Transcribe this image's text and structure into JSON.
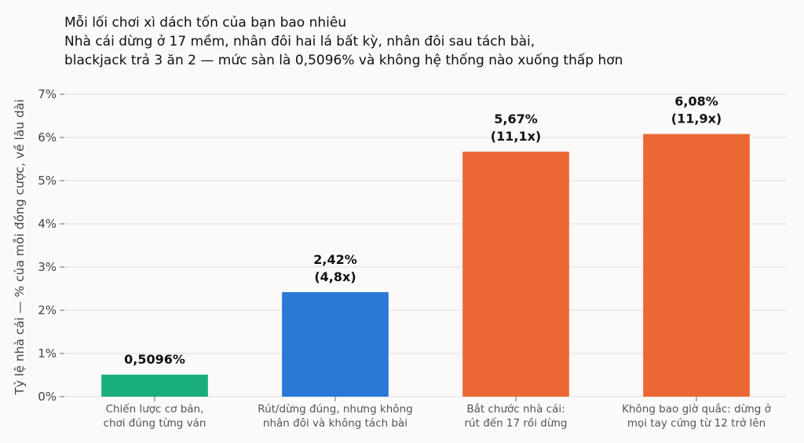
{
  "chart_data": {
    "type": "bar",
    "title_lines": [
      "Mỗi lối chơi xì dách tốn của bạn bao nhiêu",
      "Nhà cái dừng ở 17 mềm, nhân đôi hai lá bất kỳ, nhân đôi sau tách bài,",
      "blackjack trả 3 ăn 2 — mức sàn là 0,5096% và không hệ thống nào xuống thấp hơn"
    ],
    "ylabel": "Tỷ lệ nhà cái — % của mỗi đồng cược, về lâu dài",
    "xlabel": "",
    "ylim": [
      0,
      7
    ],
    "yticks": [
      0,
      1,
      2,
      3,
      4,
      5,
      6,
      7
    ],
    "ytick_labels": [
      "0%",
      "1%",
      "2%",
      "3%",
      "4%",
      "5%",
      "6%",
      "7%"
    ],
    "grid": true,
    "categories": [
      [
        "Chiến lược cơ bản,",
        "chơi đúng từng ván"
      ],
      [
        "Rút/dừng đúng, nhưng không",
        "nhân đôi và không tách bài"
      ],
      [
        "Bắt chước nhà cái:",
        "rút đến 17 rồi dừng"
      ],
      [
        "Không bao giờ quắc: dừng ở",
        "mọi tay cứng từ 12 trở lên"
      ]
    ],
    "values": [
      0.5096,
      2.42,
      5.67,
      6.08
    ],
    "data_labels": [
      [
        "0,5096%"
      ],
      [
        "2,42%",
        "(4,8x)"
      ],
      [
        "5,67%",
        "(11,1x)"
      ],
      [
        "6,08%",
        "(11,9x)"
      ]
    ],
    "colors": [
      "#1aaf7a",
      "#2a78d6",
      "#eb6834",
      "#eb6834"
    ]
  }
}
